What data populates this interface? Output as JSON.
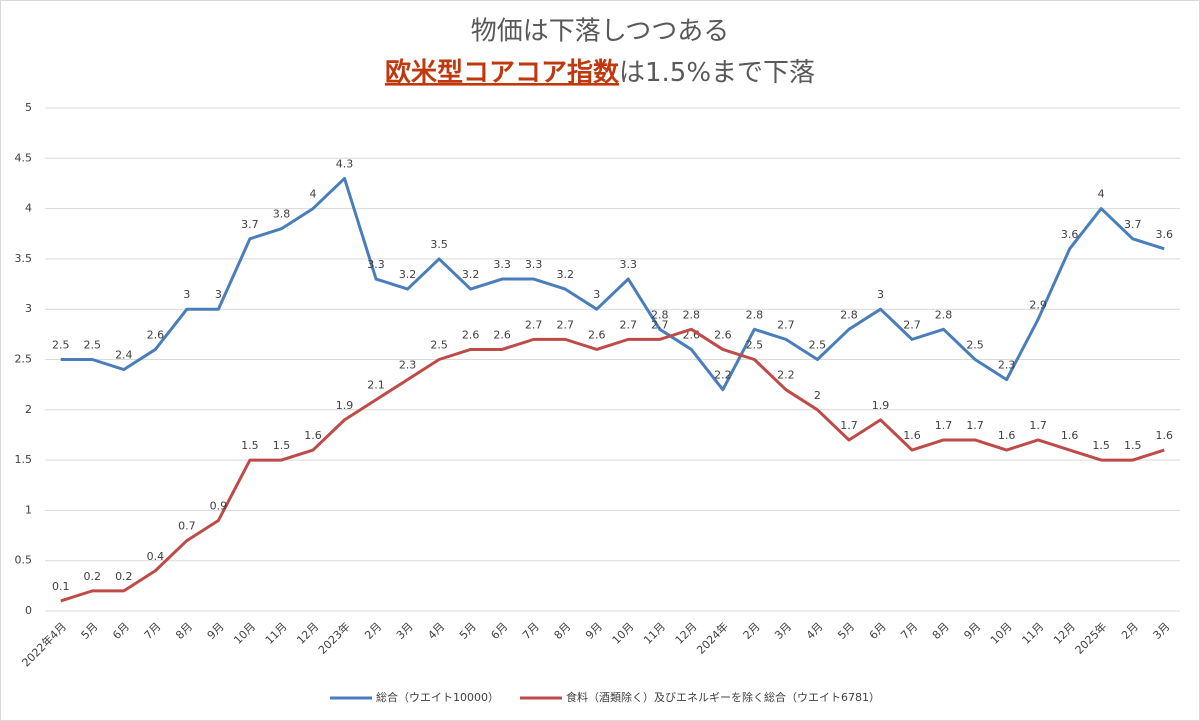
{
  "chart_data": {
    "type": "line",
    "title": "物価は下落しつつある",
    "subtitle": [
      "欧米型コアコア指数",
      "は1.5%まで下落"
    ],
    "categories": [
      "2022年4月",
      "5月",
      "6月",
      "7月",
      "8月",
      "9月",
      "10月",
      "11月",
      "12月",
      "2023年",
      "2月",
      "3月",
      "4月",
      "5月",
      "6月",
      "7月",
      "8月",
      "9月",
      "10月",
      "11月",
      "12月",
      "2024年",
      "2月",
      "3月",
      "4月",
      "5月",
      "6月",
      "7月",
      "8月",
      "9月",
      "10月",
      "11月",
      "12月",
      "2025年",
      "2月",
      "3月"
    ],
    "series": [
      {
        "name": "総合（ウエイト10000）",
        "color": "#4a7ebb",
        "values": [
          2.5,
          2.5,
          2.4,
          2.6,
          3,
          3,
          3.7,
          3.8,
          4,
          4.3,
          3.3,
          3.2,
          3.5,
          3.2,
          3.3,
          3.3,
          3.2,
          3,
          3.3,
          2.8,
          2.6,
          2.2,
          2.8,
          2.7,
          2.5,
          2.8,
          3,
          2.7,
          2.8,
          2.5,
          2.3,
          2.9,
          3.6,
          4,
          3.7,
          3.6
        ]
      },
      {
        "name": "食料（酒類除く）及びエネルギーを除く総合（ウエイト6781）",
        "color": "#be4b48",
        "values": [
          0.1,
          0.2,
          0.2,
          0.4,
          0.7,
          0.9,
          1.5,
          1.5,
          1.6,
          1.9,
          2.1,
          2.3,
          2.5,
          2.6,
          2.6,
          2.7,
          2.7,
          2.6,
          2.7,
          2.7,
          2.8,
          2.6,
          2.5,
          2.2,
          2,
          1.7,
          1.9,
          1.6,
          1.7,
          1.7,
          1.6,
          1.7,
          1.6,
          1.5,
          1.5,
          1.6
        ]
      }
    ],
    "ylim": [
      0,
      5
    ],
    "yticks": [
      0,
      0.5,
      1,
      1.5,
      2,
      2.5,
      3,
      3.5,
      4,
      4.5,
      5
    ],
    "grid": true
  }
}
